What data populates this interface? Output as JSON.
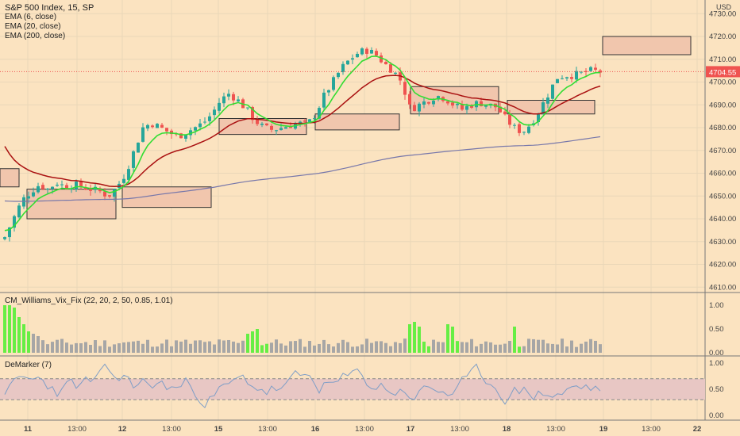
{
  "header": {
    "title": "S&P 500 Index, 15, SP",
    "currency": "USD",
    "indicators": [
      "EMA (6, close)",
      "EMA (20, close)",
      "EMA (200, close)"
    ]
  },
  "last_price": "4704.55",
  "vix_title": "CM_Williams_Vix_Fix (22, 20, 2, 50, 0.85, 1.01)",
  "demarker_title": "DeMarker (7)",
  "colors": {
    "background": "#fbe3c0",
    "up": "#26a69a",
    "down": "#ef5350",
    "ema6": "#33dd33",
    "ema20": "#aa1111",
    "ema200": "#7777aa",
    "price_tag": "#ef5350",
    "vix_gray": "#a6a6a6",
    "vix_green": "#66ee44",
    "demarker_line": "#7e9ec7",
    "demarker_band": "#e8c7c4"
  },
  "chart_data": [
    {
      "type": "candlestick",
      "name": "S&P 500 Index",
      "interval": "15",
      "ylim": [
        4608,
        4736
      ],
      "y_ticks": [
        "4730.00",
        "4720.00",
        "4710.00",
        "4700.00",
        "4690.00",
        "4680.00",
        "4670.00",
        "4660.00",
        "4650.00",
        "4640.00",
        "4630.00",
        "4620.00",
        "4610.00"
      ],
      "x_tick_labels": [
        "11",
        "13:00",
        "12",
        "13:00",
        "15",
        "13:00",
        "16",
        "13:00",
        "17",
        "13:00",
        "18",
        "13:00",
        "19",
        "13:00",
        "22"
      ],
      "close_path": [
        4632,
        4640,
        4648,
        4652,
        4655,
        4653,
        4656,
        4654,
        4655,
        4654,
        4653,
        4652,
        4650,
        4654,
        4660,
        4670,
        4680,
        4682,
        4680,
        4678,
        4676,
        4678,
        4680,
        4682,
        4686,
        4692,
        4695,
        4692,
        4688,
        4683,
        4680,
        4679,
        4680,
        4681,
        4682,
        4681,
        4686,
        4694,
        4700,
        4706,
        4710,
        4713,
        4714,
        4712,
        4708,
        4705,
        4700,
        4688,
        4690,
        4692,
        4694,
        4693,
        4690,
        4688,
        4690,
        4691,
        4690,
        4689,
        4684,
        4680,
        4678,
        4682,
        4688,
        4695,
        4702,
        4703,
        4703,
        4704,
        4705,
        4704.55
      ],
      "support_resistance_zones": [
        {
          "from": 4654,
          "to": 4662
        },
        {
          "from": 4640,
          "to": 4653
        },
        {
          "from": 4645,
          "to": 4654
        },
        {
          "from": 4677,
          "to": 4684
        },
        {
          "from": 4679,
          "to": 4686
        },
        {
          "from": 4686,
          "to": 4698
        },
        {
          "from": 4686,
          "to": 4692
        },
        {
          "from": 4712,
          "to": 4720
        }
      ]
    },
    {
      "type": "bar",
      "name": "CM_Williams_Vix_Fix",
      "ylim": [
        0,
        1.2
      ],
      "y_ticks": [
        "1.00",
        "0.50",
        "0.00"
      ]
    },
    {
      "type": "line",
      "name": "DeMarker",
      "ylim": [
        0,
        1.0
      ],
      "y_ticks": [
        "1.00",
        "0.50",
        "0.00"
      ],
      "band": [
        0.3,
        0.7
      ]
    }
  ]
}
